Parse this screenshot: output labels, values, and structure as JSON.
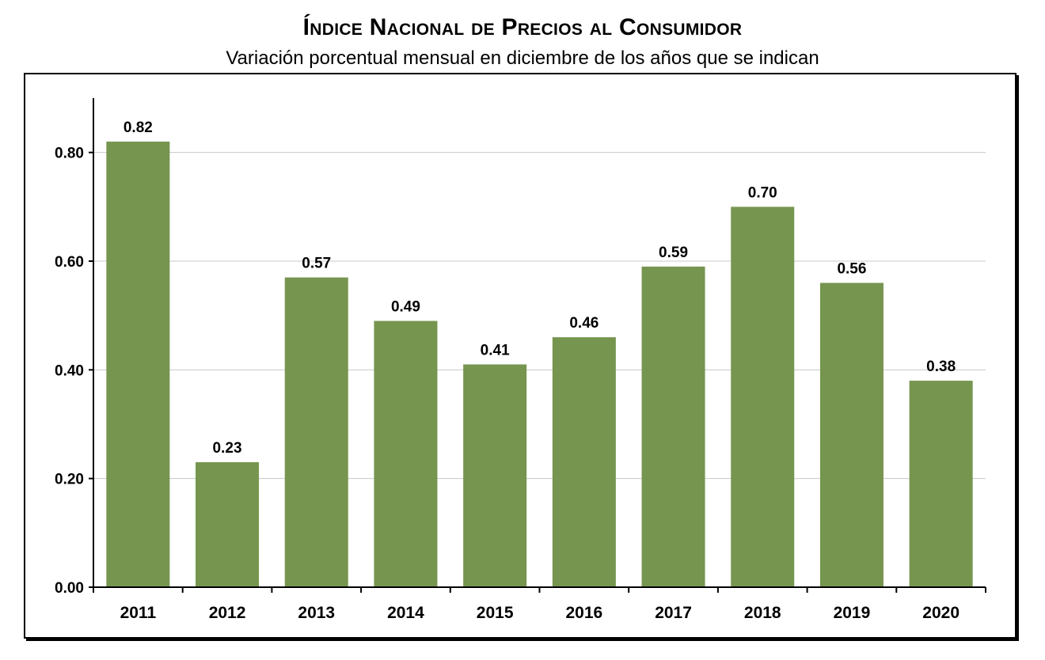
{
  "chart_data": {
    "type": "bar",
    "title": "Índice Nacional de Precios al Consumidor",
    "subtitle": "Variación porcentual mensual en diciembre de los años que se indican",
    "categories": [
      "2011",
      "2012",
      "2013",
      "2014",
      "2015",
      "2016",
      "2017",
      "2018",
      "2019",
      "2020"
    ],
    "values": [
      0.82,
      0.23,
      0.57,
      0.49,
      0.41,
      0.46,
      0.59,
      0.7,
      0.56,
      0.38
    ],
    "data_labels": [
      "0.82",
      "0.23",
      "0.57",
      "0.49",
      "0.41",
      "0.46",
      "0.59",
      "0.70",
      "0.56",
      "0.38"
    ],
    "yticks": [
      "0.00",
      "0.20",
      "0.40",
      "0.60",
      "0.80"
    ],
    "ylim": [
      0,
      0.9
    ],
    "xlabel": "",
    "ylabel": "",
    "grid": true,
    "legend": "none",
    "bar_color": "#76954f",
    "grid_color": "#c8c8c8"
  }
}
